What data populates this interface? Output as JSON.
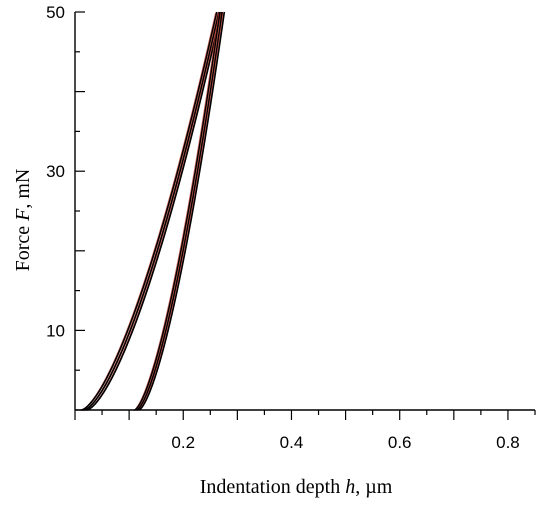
{
  "chart_data": {
    "type": "line",
    "xlabel_prefix": "Indentation depth ",
    "xlabel_var": "h",
    "xlabel_suffix": ", µm",
    "ylabel_prefix": "Force ",
    "ylabel_var": "F",
    "ylabel_suffix": ", mN",
    "xlim": [
      0.0,
      0.85
    ],
    "ylim": [
      0,
      50
    ],
    "x_ticks_labeled": [
      0.2,
      0.4,
      0.6,
      0.8
    ],
    "x_tick_labels": [
      "0.2",
      "0.4",
      "0.6",
      "0.8"
    ],
    "y_ticks_labeled": [
      10,
      30,
      50
    ],
    "y_tick_labels": [
      "10",
      "30",
      "50"
    ],
    "x_minor_step": 0.05,
    "y_minor_step": 5,
    "grid": false,
    "legend": "none",
    "series": [
      {
        "h0": 0.012,
        "h_max": 0.262,
        "F_max": 50,
        "exponent": 1.5,
        "color": "#000000"
      },
      {
        "h0": 0.017,
        "h_max": 0.266,
        "F_max": 50,
        "exponent": 1.5,
        "color": "#000000"
      },
      {
        "h0": 0.022,
        "h_max": 0.27,
        "F_max": 50,
        "exponent": 1.5,
        "color": "#000000"
      },
      {
        "h0": 0.11,
        "h_max": 0.268,
        "F_max": 50,
        "exponent": 1.5,
        "color": "#000000"
      },
      {
        "h0": 0.114,
        "h_max": 0.272,
        "F_max": 50,
        "exponent": 1.5,
        "color": "#000000"
      },
      {
        "h0": 0.118,
        "h_max": 0.276,
        "F_max": 50,
        "exponent": 1.5,
        "color": "#000000"
      }
    ],
    "accent_color": "#c0392b"
  }
}
